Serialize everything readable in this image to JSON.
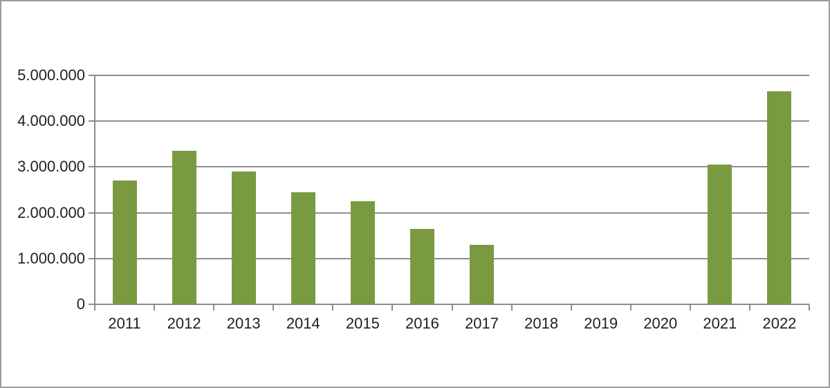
{
  "chart_data": {
    "type": "bar",
    "title": "",
    "xlabel": "",
    "ylabel": "",
    "categories": [
      "2011",
      "2012",
      "2013",
      "2014",
      "2015",
      "2016",
      "2017",
      "2018",
      "2019",
      "2020",
      "2021",
      "2022"
    ],
    "values": [
      2700000,
      3350000,
      2900000,
      2450000,
      2250000,
      1650000,
      1300000,
      0,
      0,
      0,
      3050000,
      4650000
    ],
    "ylim": [
      0,
      5000000
    ],
    "ytick_interval": 1000000,
    "ytick_labels": [
      "0",
      "1.000.000",
      "2.000.000",
      "3.000.000",
      "4.000.000",
      "5.000.000"
    ],
    "gridlines": "horizontal",
    "legend": "none",
    "colors": {
      "bar": "#7a9a41",
      "grid": "#8d8d8d",
      "axis": "#8d8d8d",
      "text": "#1f1f1f",
      "background": "#ffffff",
      "frame_border": "#9b9b9b"
    }
  }
}
